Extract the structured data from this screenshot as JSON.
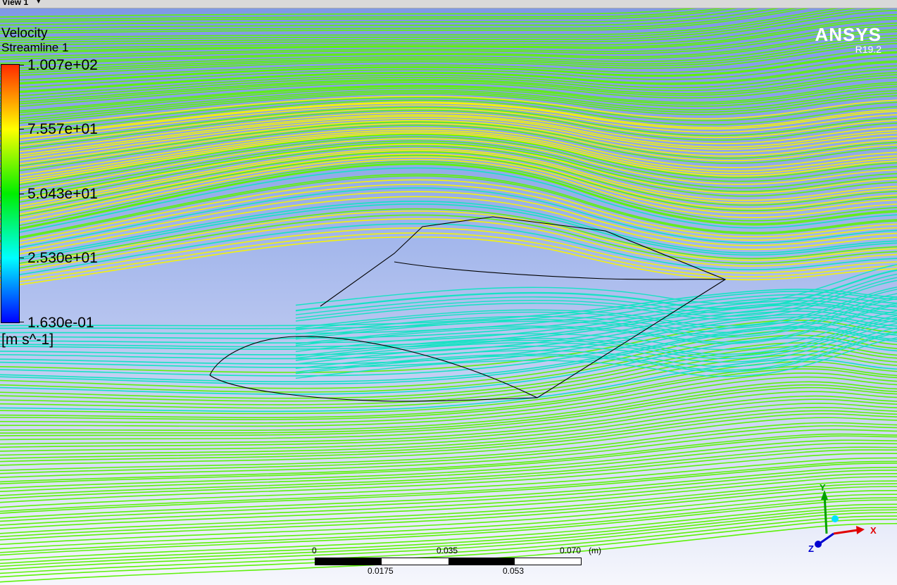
{
  "view_tab": {
    "label": "View 1"
  },
  "legend": {
    "title": "Velocity",
    "subtitle": "Streamline 1",
    "ticks": [
      "1.007e+02",
      "7.557e+01",
      "5.043e+01",
      "2.530e+01",
      "1.630e-01"
    ],
    "units": "[m s^-1]"
  },
  "branding": {
    "logo": "ANSYS",
    "version": "R19.2"
  },
  "scale": {
    "top_labels": [
      "0",
      "0.035",
      "0.070"
    ],
    "unit": "(m)",
    "bottom_labels": [
      "0.0175",
      "0.053"
    ]
  },
  "triad": {
    "y": "Y",
    "x": "X",
    "z": "Z"
  },
  "colors": {
    "streamline_green": "#5ef20a",
    "streamline_yellow": "#f3f20b",
    "streamline_cyan": "#16e2c4",
    "colormap": [
      "#ff2a00",
      "#ffff00",
      "#00ee00",
      "#00ffff",
      "#0000ff"
    ]
  }
}
